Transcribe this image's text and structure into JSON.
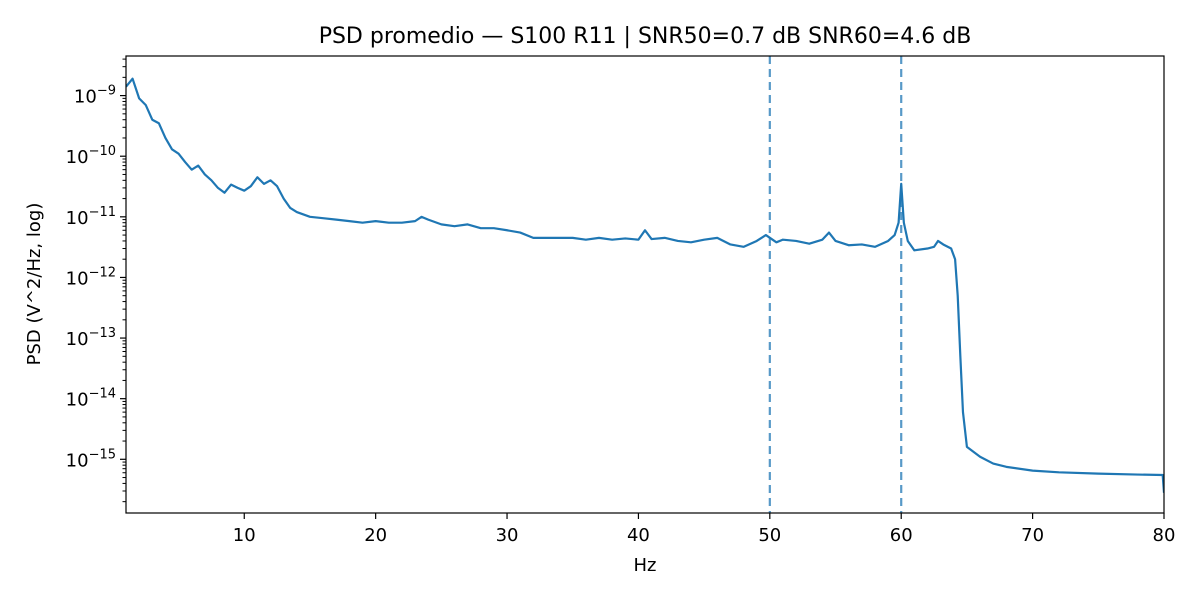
{
  "chart_data": {
    "type": "line",
    "title": "PSD promedio — S100 R11 | SNR50=0.7 dB  SNR60=4.6 dB",
    "xlabel": "Hz",
    "ylabel": "PSD (V^2/Hz, log)",
    "xlim": [
      1,
      80
    ],
    "ylim": [
      1.3e-16,
      4.5e-09
    ],
    "yscale": "log",
    "grid": false,
    "x_ticks": [
      10,
      20,
      30,
      40,
      50,
      60,
      70,
      80
    ],
    "y_ticks": [
      {
        "value": 1e-09,
        "base": "10",
        "exp": "−9"
      },
      {
        "value": 1e-10,
        "base": "10",
        "exp": "−10"
      },
      {
        "value": 1e-11,
        "base": "10",
        "exp": "−11"
      },
      {
        "value": 1e-12,
        "base": "10",
        "exp": "−12"
      },
      {
        "value": 1e-13,
        "base": "10",
        "exp": "−13"
      },
      {
        "value": 1e-14,
        "base": "10",
        "exp": "−14"
      },
      {
        "value": 1e-15,
        "base": "10",
        "exp": "−15"
      }
    ],
    "series": [
      {
        "color": "#1f77b4",
        "x": [
          1,
          1.5,
          2,
          2.5,
          3,
          3.5,
          4,
          4.5,
          5,
          5.5,
          6,
          6.5,
          7,
          7.5,
          8,
          8.5,
          9,
          9.5,
          10,
          10.5,
          11,
          11.5,
          12,
          12.5,
          13,
          13.5,
          14,
          15,
          16,
          17,
          18,
          19,
          20,
          21,
          22,
          23,
          23.5,
          24,
          25,
          26,
          27,
          28,
          29,
          30,
          31,
          32,
          33,
          34,
          35,
          36,
          37,
          38,
          39,
          40,
          40.5,
          41,
          42,
          43,
          44,
          45,
          46,
          47,
          48,
          49,
          49.7,
          50.5,
          51,
          52,
          53,
          54,
          54.5,
          55,
          56,
          57,
          58,
          59,
          59.5,
          59.8,
          60,
          60.2,
          60.5,
          61,
          62,
          62.5,
          62.8,
          63.2,
          63.8,
          64.1,
          64.3,
          64.5,
          64.7,
          65,
          66,
          67,
          68,
          70,
          72,
          75,
          78,
          79.9,
          80
        ],
        "y": [
          1.4e-09,
          1.9e-09,
          9e-10,
          7e-10,
          4e-10,
          3.5e-10,
          2e-10,
          1.3e-10,
          1.1e-10,
          8e-11,
          6e-11,
          7e-11,
          5e-11,
          4e-11,
          3e-11,
          2.5e-11,
          3.4e-11,
          3e-11,
          2.7e-11,
          3.2e-11,
          4.5e-11,
          3.5e-11,
          4e-11,
          3.2e-11,
          2e-11,
          1.4e-11,
          1.2e-11,
          1e-11,
          9.5e-12,
          9e-12,
          8.5e-12,
          8e-12,
          8.5e-12,
          8e-12,
          8e-12,
          8.5e-12,
          1e-11,
          9e-12,
          7.5e-12,
          7e-12,
          7.5e-12,
          6.5e-12,
          6.5e-12,
          6e-12,
          5.5e-12,
          4.5e-12,
          4.5e-12,
          4.5e-12,
          4.5e-12,
          4.2e-12,
          4.5e-12,
          4.2e-12,
          4.4e-12,
          4.2e-12,
          6e-12,
          4.3e-12,
          4.5e-12,
          4e-12,
          3.8e-12,
          4.2e-12,
          4.5e-12,
          3.5e-12,
          3.2e-12,
          4e-12,
          5e-12,
          3.8e-12,
          4.2e-12,
          4e-12,
          3.6e-12,
          4.2e-12,
          5.5e-12,
          4e-12,
          3.4e-12,
          3.5e-12,
          3.2e-12,
          4e-12,
          5e-12,
          8e-12,
          3.5e-11,
          8e-12,
          4e-12,
          2.8e-12,
          3e-12,
          3.2e-12,
          4e-12,
          3.5e-12,
          3e-12,
          2e-12,
          5e-13,
          5e-14,
          6e-15,
          1.6e-15,
          1.1e-15,
          8.5e-16,
          7.5e-16,
          6.5e-16,
          6.1e-16,
          5.8e-16,
          5.6e-16,
          5.5e-16,
          2.8e-16
        ]
      }
    ],
    "reference_lines": [
      {
        "x": 50,
        "style": "dashed",
        "color": "#1f77b4"
      },
      {
        "x": 60,
        "style": "dashed",
        "color": "#1f77b4"
      }
    ]
  }
}
